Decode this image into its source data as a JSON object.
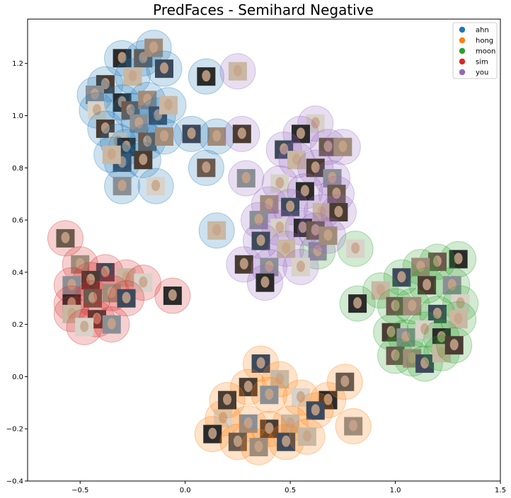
{
  "chart_data": {
    "type": "scatter",
    "title": "PredFaces - Semihard Negative",
    "xlabel": "",
    "ylabel": "",
    "xlim": [
      -0.75,
      1.5
    ],
    "ylim": [
      -0.4,
      1.37
    ],
    "xticks": [
      "−0.5",
      "0.0",
      "0.5",
      "1.0",
      "1.5"
    ],
    "xtick_values": [
      -0.5,
      0.0,
      0.5,
      1.0,
      1.5
    ],
    "yticks": [
      "−0.4",
      "−0.2",
      "0.0",
      "0.2",
      "0.4",
      "0.6",
      "0.8",
      "1.0",
      "1.2"
    ],
    "ytick_values": [
      -0.4,
      -0.2,
      0.0,
      0.2,
      0.4,
      0.6,
      0.8,
      1.0,
      1.2
    ],
    "grid": false,
    "legend_position": "top-right",
    "marker": "face-thumbnail-with-translucent-circle",
    "series": [
      {
        "name": "ahn",
        "color": "#1f77b4",
        "points": [
          [
            -0.3,
            1.22
          ],
          [
            -0.2,
            1.22
          ],
          [
            -0.15,
            1.26
          ],
          [
            -0.1,
            1.18
          ],
          [
            -0.25,
            1.15
          ],
          [
            -0.38,
            1.12
          ],
          [
            -0.43,
            1.08
          ],
          [
            -0.42,
            1.02
          ],
          [
            -0.3,
            1.05
          ],
          [
            -0.26,
            1.02
          ],
          [
            -0.18,
            1.06
          ],
          [
            -0.13,
            1.0
          ],
          [
            -0.08,
            1.04
          ],
          [
            -0.38,
            0.95
          ],
          [
            -0.22,
            0.97
          ],
          [
            -0.32,
            0.9
          ],
          [
            -0.28,
            0.88
          ],
          [
            -0.18,
            0.9
          ],
          [
            -0.1,
            0.92
          ],
          [
            -0.3,
            0.82
          ],
          [
            -0.35,
            0.85
          ],
          [
            -0.2,
            0.83
          ],
          [
            -0.3,
            0.73
          ],
          [
            -0.14,
            0.73
          ],
          [
            0.1,
            1.15
          ],
          [
            0.1,
            0.8
          ],
          [
            0.15,
            0.92
          ],
          [
            0.03,
            0.93
          ],
          [
            0.15,
            0.56
          ]
        ]
      },
      {
        "name": "hong",
        "color": "#ff7f0e",
        "points": [
          [
            0.36,
            0.05
          ],
          [
            0.45,
            -0.01
          ],
          [
            0.3,
            -0.04
          ],
          [
            0.4,
            -0.07
          ],
          [
            0.55,
            -0.08
          ],
          [
            0.68,
            -0.09
          ],
          [
            0.76,
            -0.02
          ],
          [
            0.8,
            -0.19
          ],
          [
            0.62,
            -0.13
          ],
          [
            0.5,
            -0.18
          ],
          [
            0.4,
            -0.2
          ],
          [
            0.3,
            -0.18
          ],
          [
            0.18,
            -0.16
          ],
          [
            0.13,
            -0.22
          ],
          [
            0.25,
            -0.25
          ],
          [
            0.35,
            -0.27
          ],
          [
            0.48,
            -0.25
          ],
          [
            0.58,
            -0.23
          ],
          [
            0.2,
            -0.09
          ]
        ]
      },
      {
        "name": "moon",
        "color": "#2ca02c",
        "points": [
          [
            0.63,
            0.48
          ],
          [
            0.81,
            0.49
          ],
          [
            1.3,
            0.45
          ],
          [
            1.2,
            0.44
          ],
          [
            1.12,
            0.42
          ],
          [
            1.03,
            0.38
          ],
          [
            0.93,
            0.33
          ],
          [
            1.15,
            0.35
          ],
          [
            1.27,
            0.35
          ],
          [
            1.31,
            0.28
          ],
          [
            0.82,
            0.28
          ],
          [
            1.0,
            0.27
          ],
          [
            1.08,
            0.27
          ],
          [
            1.2,
            0.24
          ],
          [
            1.3,
            0.22
          ],
          [
            0.98,
            0.17
          ],
          [
            1.05,
            0.15
          ],
          [
            1.14,
            0.18
          ],
          [
            1.22,
            0.15
          ],
          [
            1.0,
            0.08
          ],
          [
            1.08,
            0.07
          ],
          [
            1.14,
            0.05
          ],
          [
            1.22,
            0.09
          ],
          [
            1.28,
            0.12
          ]
        ]
      },
      {
        "name": "sim",
        "color": "#d62728",
        "points": [
          [
            -0.57,
            0.53
          ],
          [
            -0.5,
            0.43
          ],
          [
            -0.38,
            0.4
          ],
          [
            -0.28,
            0.38
          ],
          [
            -0.45,
            0.37
          ],
          [
            -0.54,
            0.35
          ],
          [
            -0.2,
            0.36
          ],
          [
            -0.54,
            0.28
          ],
          [
            -0.44,
            0.3
          ],
          [
            -0.35,
            0.32
          ],
          [
            -0.28,
            0.3
          ],
          [
            -0.54,
            0.24
          ],
          [
            -0.42,
            0.22
          ],
          [
            -0.35,
            0.2
          ],
          [
            -0.48,
            0.19
          ],
          [
            -0.06,
            0.31
          ]
        ]
      },
      {
        "name": "you",
        "color": "#9467bd",
        "points": [
          [
            0.25,
            1.17
          ],
          [
            0.27,
            0.93
          ],
          [
            0.29,
            0.76
          ],
          [
            0.62,
            0.97
          ],
          [
            0.55,
            0.93
          ],
          [
            0.68,
            0.88
          ],
          [
            0.75,
            0.88
          ],
          [
            0.47,
            0.87
          ],
          [
            0.53,
            0.83
          ],
          [
            0.62,
            0.8
          ],
          [
            0.7,
            0.76
          ],
          [
            0.45,
            0.74
          ],
          [
            0.57,
            0.71
          ],
          [
            0.72,
            0.7
          ],
          [
            0.4,
            0.66
          ],
          [
            0.5,
            0.65
          ],
          [
            0.65,
            0.63
          ],
          [
            0.73,
            0.63
          ],
          [
            0.35,
            0.6
          ],
          [
            0.45,
            0.57
          ],
          [
            0.56,
            0.57
          ],
          [
            0.62,
            0.56
          ],
          [
            0.68,
            0.54
          ],
          [
            0.36,
            0.52
          ],
          [
            0.48,
            0.49
          ],
          [
            0.28,
            0.43
          ],
          [
            0.4,
            0.42
          ],
          [
            0.55,
            0.42
          ],
          [
            0.38,
            0.36
          ]
        ]
      }
    ]
  }
}
